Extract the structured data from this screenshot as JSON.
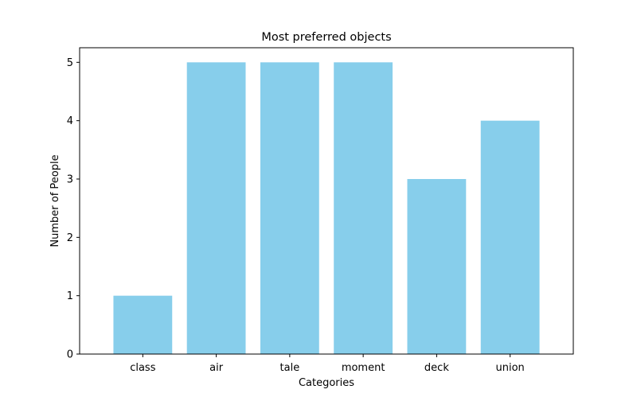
{
  "chart_data": {
    "type": "bar",
    "title": "Most preferred objects",
    "xlabel": "Categories",
    "ylabel": "Number of People",
    "categories": [
      "class",
      "air",
      "tale",
      "moment",
      "deck",
      "union"
    ],
    "values": [
      1,
      5,
      5,
      5,
      3,
      4
    ],
    "ylim": [
      0,
      5.25
    ],
    "yticks": [
      0,
      1,
      2,
      3,
      4,
      5
    ],
    "bar_color": "#87ceeb",
    "grid": false,
    "legend": "none"
  }
}
